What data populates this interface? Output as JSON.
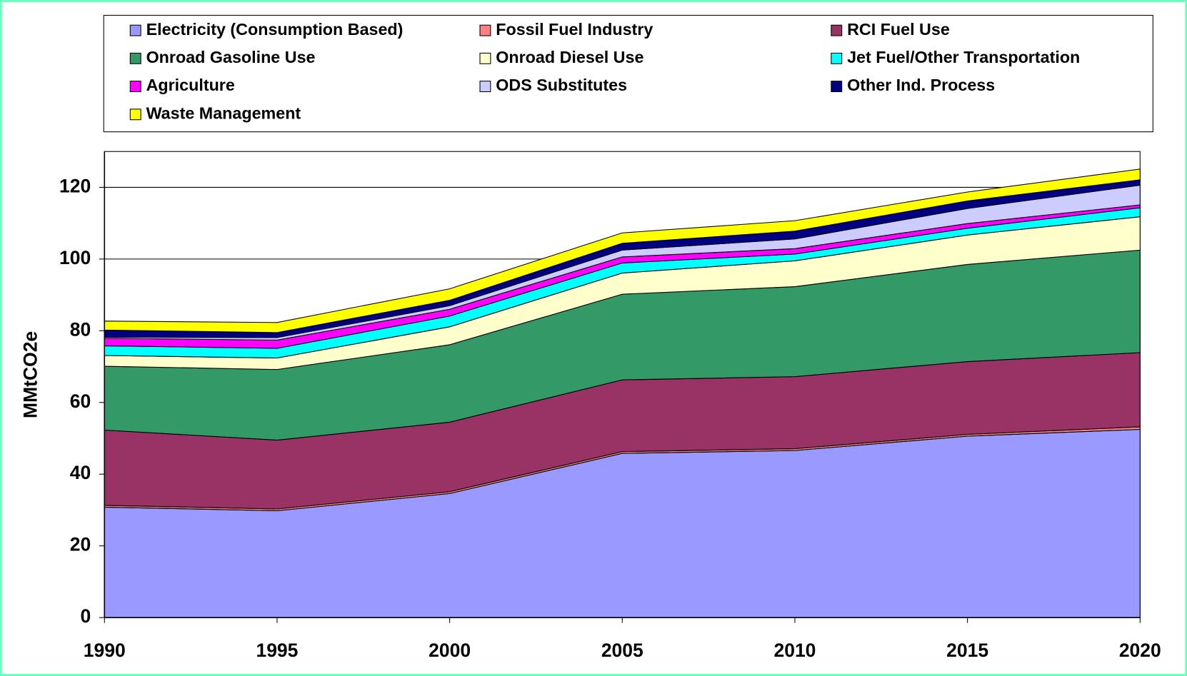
{
  "chart_data": {
    "type": "stacked-area",
    "y_label": "MMtCO2e",
    "x": [
      1990,
      1995,
      2000,
      2005,
      2010,
      2015,
      2020
    ],
    "xlim": [
      1990,
      2020
    ],
    "xticks": [
      1990,
      1995,
      2000,
      2005,
      2010,
      2015,
      2020
    ],
    "ylim": [
      0,
      130
    ],
    "yticks": [
      0,
      20,
      40,
      60,
      80,
      100,
      120
    ],
    "grid": true,
    "legend": "top",
    "series": [
      {
        "name": "Electricity (Consumption Based)",
        "color": "#9999ff",
        "values": [
          30.8,
          29.8,
          34.6,
          45.8,
          46.6,
          50.6,
          52.5
        ]
      },
      {
        "name": "Fossil Fuel Industry",
        "color": "#ff8080",
        "values": [
          0.5,
          0.5,
          0.5,
          0.5,
          0.5,
          0.5,
          0.7
        ]
      },
      {
        "name": "RCI Fuel Use",
        "color": "#993366",
        "values": [
          21,
          19.2,
          19.4,
          20,
          20.1,
          20.3,
          20.7
        ]
      },
      {
        "name": "Onroad Gasoline Use",
        "color": "#339966",
        "values": [
          17.8,
          19.7,
          21.6,
          23.9,
          25.1,
          27.1,
          28.6
        ]
      },
      {
        "name": "Onroad Diesel Use",
        "color": "#ffffcc",
        "values": [
          3,
          3.2,
          5,
          5.9,
          7.2,
          8.2,
          9.3
        ]
      },
      {
        "name": "Jet Fuel/Other Transportation",
        "color": "#00ffff",
        "values": [
          2.7,
          2.7,
          3,
          2.8,
          1.9,
          1.9,
          2.5
        ]
      },
      {
        "name": "Agriculture",
        "color": "#ff00ff",
        "values": [
          2.1,
          2.3,
          1.9,
          1.7,
          1.5,
          1.3,
          0.8
        ]
      },
      {
        "name": "ODS Substitutes",
        "color": "#ccccff",
        "values": [
          0.3,
          0.7,
          1,
          1.9,
          2.7,
          4.2,
          5.5
        ]
      },
      {
        "name": "Other Ind. Process",
        "color": "#000080",
        "values": [
          2,
          1.4,
          1.5,
          1.9,
          2.2,
          2.1,
          1.5
        ]
      },
      {
        "name": "Waste Management",
        "color": "#ffff00",
        "values": [
          2.5,
          2.8,
          3.2,
          2.9,
          2.9,
          2.5,
          3
        ]
      }
    ]
  }
}
